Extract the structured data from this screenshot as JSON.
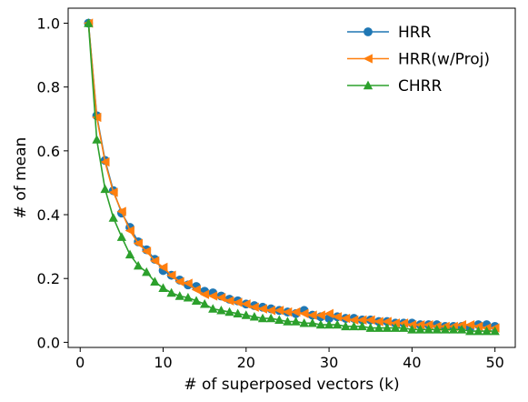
{
  "chart_data": {
    "type": "line",
    "xlabel": "# of superposed vectors (k)",
    "ylabel": "# of mean",
    "xlim": [
      -1.45,
      52.45
    ],
    "ylim": [
      -0.016,
      1.047
    ],
    "xticks": [
      0,
      10,
      20,
      30,
      40,
      50
    ],
    "yticks": [
      0.0,
      0.2,
      0.4,
      0.6,
      0.8,
      1.0
    ],
    "xtick_labels": [
      "0",
      "10",
      "20",
      "30",
      "40",
      "50"
    ],
    "ytick_labels": [
      "0.0",
      "0.2",
      "0.4",
      "0.6",
      "0.8",
      "1.0"
    ],
    "grid": false,
    "legend_position": "top-right",
    "x": [
      1,
      2,
      3,
      4,
      5,
      6,
      7,
      8,
      9,
      10,
      11,
      12,
      13,
      14,
      15,
      16,
      17,
      18,
      19,
      20,
      21,
      22,
      23,
      24,
      25,
      26,
      27,
      28,
      29,
      30,
      31,
      32,
      33,
      34,
      35,
      36,
      37,
      38,
      39,
      40,
      41,
      42,
      43,
      44,
      45,
      46,
      47,
      48,
      49,
      50
    ],
    "series": [
      {
        "name": "HRR",
        "color": "#1f77b4",
        "marker": "circle",
        "values": [
          1.0,
          0.71,
          0.57,
          0.475,
          0.405,
          0.36,
          0.315,
          0.29,
          0.26,
          0.225,
          0.21,
          0.195,
          0.18,
          0.175,
          0.16,
          0.155,
          0.145,
          0.135,
          0.13,
          0.12,
          0.115,
          0.11,
          0.105,
          0.1,
          0.095,
          0.09,
          0.1,
          0.085,
          0.08,
          0.075,
          0.08,
          0.075,
          0.075,
          0.07,
          0.07,
          0.065,
          0.065,
          0.06,
          0.06,
          0.06,
          0.055,
          0.055,
          0.055,
          0.05,
          0.05,
          0.05,
          0.045,
          0.055,
          0.055,
          0.05
        ]
      },
      {
        "name": "HRR(w/Proj)",
        "color": "#ff7f0e",
        "marker": "triangle-left",
        "values": [
          1.0,
          0.705,
          0.565,
          0.47,
          0.41,
          0.35,
          0.31,
          0.285,
          0.255,
          0.235,
          0.21,
          0.19,
          0.185,
          0.165,
          0.15,
          0.145,
          0.14,
          0.13,
          0.125,
          0.12,
          0.11,
          0.105,
          0.1,
          0.1,
          0.095,
          0.095,
          0.09,
          0.085,
          0.085,
          0.09,
          0.08,
          0.075,
          0.07,
          0.07,
          0.07,
          0.065,
          0.065,
          0.06,
          0.06,
          0.055,
          0.055,
          0.055,
          0.05,
          0.05,
          0.05,
          0.055,
          0.055,
          0.05,
          0.045,
          0.045
        ]
      },
      {
        "name": "CHRR",
        "color": "#2ca02c",
        "marker": "triangle-up",
        "values": [
          1.0,
          0.635,
          0.48,
          0.39,
          0.33,
          0.275,
          0.24,
          0.22,
          0.19,
          0.17,
          0.155,
          0.145,
          0.14,
          0.13,
          0.12,
          0.105,
          0.1,
          0.095,
          0.09,
          0.085,
          0.08,
          0.075,
          0.075,
          0.07,
          0.065,
          0.065,
          0.06,
          0.06,
          0.055,
          0.055,
          0.055,
          0.05,
          0.05,
          0.05,
          0.045,
          0.045,
          0.045,
          0.045,
          0.045,
          0.04,
          0.04,
          0.04,
          0.04,
          0.04,
          0.04,
          0.04,
          0.035,
          0.035,
          0.035,
          0.035
        ]
      }
    ]
  }
}
